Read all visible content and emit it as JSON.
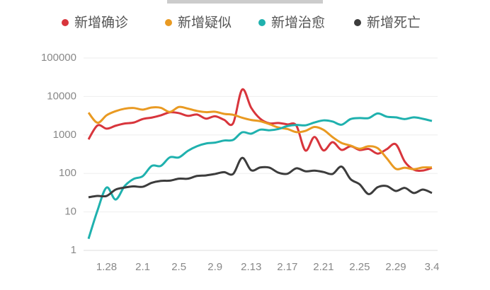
{
  "chart_data": {
    "type": "line",
    "categories": [
      null,
      null,
      "1.28",
      null,
      null,
      null,
      "2.1",
      null,
      null,
      null,
      "2.5",
      null,
      null,
      null,
      "2.9",
      null,
      null,
      null,
      "2.13",
      null,
      null,
      null,
      "2.17",
      null,
      null,
      null,
      "2.21",
      null,
      null,
      null,
      "2.25",
      null,
      null,
      null,
      "2.29",
      null,
      null,
      null,
      "3.4"
    ],
    "series": [
      {
        "name": "新增确诊",
        "color": "#d8353c",
        "values": [
          769,
          1771,
          1459,
          1737,
          1982,
          2102,
          2590,
          2829,
          3235,
          3887,
          3694,
          3143,
          3399,
          2656,
          3062,
          2478,
          2015,
          15152,
          5090,
          2641,
          2009,
          2048,
          1886,
          1749,
          394,
          889,
          397,
          648,
          409,
          508,
          406,
          433,
          327,
          427,
          573,
          202,
          125,
          119,
          139
        ]
      },
      {
        "name": "新增疑似",
        "color": "#e99a22",
        "values": [
          3806,
          2077,
          3248,
          4148,
          4812,
          5019,
          4562,
          5173,
          5072,
          3971,
          5328,
          4833,
          4214,
          3916,
          4008,
          3536,
          3342,
          2807,
          2450,
          2277,
          1918,
          1563,
          1432,
          1185,
          1277,
          1614,
          1361,
          882,
          620,
          530,
          439,
          508,
          452,
          248,
          132,
          141,
          129,
          143,
          143
        ]
      },
      {
        "name": "新增治愈",
        "color": "#1fb1ae",
        "values": [
          2,
          11,
          43,
          21,
          47,
          72,
          85,
          157,
          157,
          262,
          261,
          387,
          510,
          600,
          632,
          716,
          744,
          1171,
          1081,
          1373,
          1323,
          1425,
          1701,
          1824,
          1779,
          2109,
          2393,
          2231,
          1846,
          2589,
          2752,
          2750,
          3622,
          2986,
          2871,
          2589,
          2868,
          2628,
          2311
        ]
      },
      {
        "name": "新增死亡",
        "color": "#3c3c3c",
        "values": [
          24,
          26,
          26,
          38,
          43,
          46,
          45,
          57,
          64,
          65,
          73,
          73,
          86,
          89,
          97,
          108,
          97,
          254,
          121,
          143,
          142,
          105,
          98,
          136,
          114,
          118,
          109,
          97,
          150,
          71,
          52,
          29,
          44,
          47,
          35,
          42,
          31,
          38,
          31
        ]
      }
    ],
    "ylim": [
      1,
      100000
    ],
    "yticks": [
      1,
      10,
      100,
      1000,
      10000,
      100000
    ],
    "log_scale": true,
    "grid": true,
    "legend": "top"
  }
}
